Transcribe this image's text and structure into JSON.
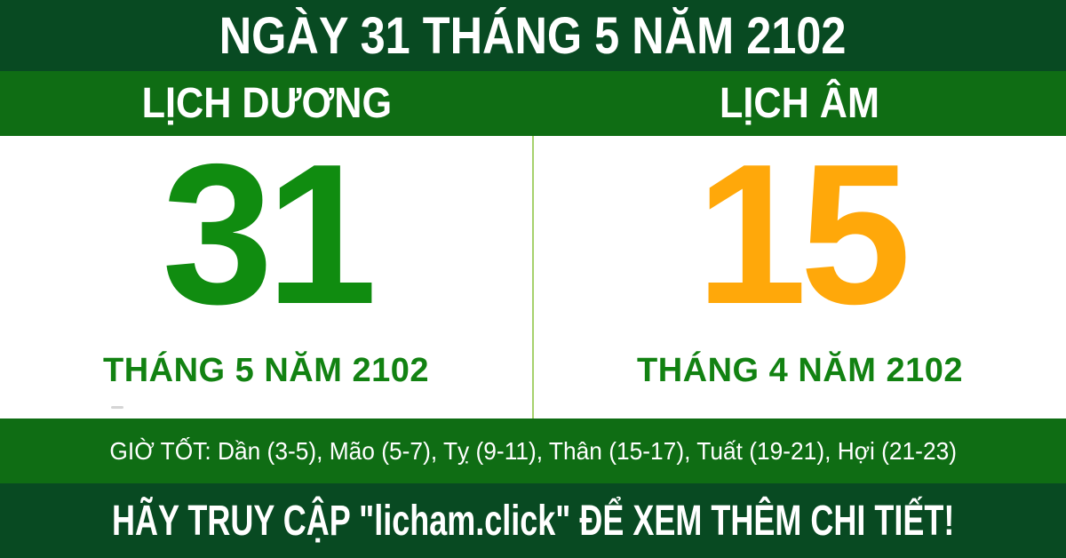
{
  "header": {
    "title": "NGÀY 31 THÁNG 5 NĂM 2102"
  },
  "solar": {
    "label": "LỊCH DƯƠNG",
    "day": "31",
    "month_year": "THÁNG 5 NĂM 2102"
  },
  "lunar": {
    "label": "LỊCH ÂM",
    "day": "15",
    "month_year": "THÁNG 4 NĂM 2102"
  },
  "good_hours": {
    "prefix": "GIỜ TỐT:",
    "hours": [
      "Dần (3-5)",
      "Mão (5-7)",
      "Tỵ (9-11)",
      "Thân (15-17)",
      "Tuất (19-21)",
      "Hợi (21-23)"
    ],
    "text": "GIỜ TỐT: Dần (3-5), Mão (5-7), Tỵ (9-11), Thân (15-17), Tuất (19-21), Hợi (21-23)"
  },
  "footer": {
    "text": "HÃY TRUY CẬP \"licham.click\" ĐỂ XEM THÊM CHI TIẾT!",
    "site": "licham.click"
  },
  "colors": {
    "dark_green": "#084a22",
    "medium_green": "#0f6d14",
    "solar_day_green": "#108c10",
    "lunar_day_orange": "#ffa80a",
    "month_text_green": "#128212",
    "divider_light_green": "#a6d16d",
    "text_white": "#ffffff"
  }
}
